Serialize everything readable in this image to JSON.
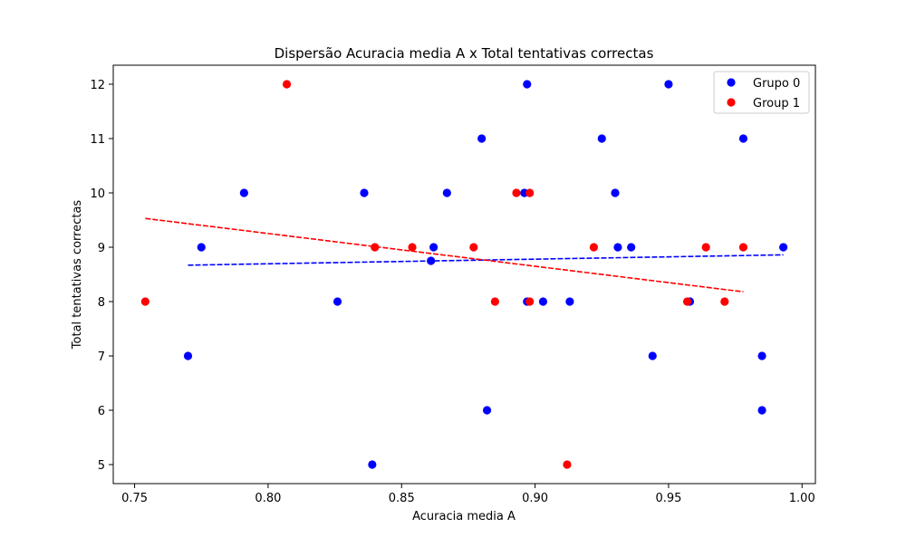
{
  "chart_data": {
    "type": "scatter",
    "title": "Dispersão Acuracia media A x Total tentativas correctas",
    "xlabel": "Acuracia media A",
    "ylabel": "Total tentativas correctas",
    "xlim": [
      0.742,
      1.005
    ],
    "ylim": [
      4.65,
      12.35
    ],
    "xticks": [
      0.75,
      0.8,
      0.85,
      0.9,
      0.95,
      1.0
    ],
    "xtick_labels": [
      "0.75",
      "0.80",
      "0.85",
      "0.90",
      "0.95",
      "1.00"
    ],
    "yticks": [
      5,
      6,
      7,
      8,
      9,
      10,
      11,
      12
    ],
    "ytick_labels": [
      "5",
      "6",
      "7",
      "8",
      "9",
      "10",
      "11",
      "12"
    ],
    "grid": false,
    "legend_position": "top-right",
    "series": [
      {
        "name": "Grupo 0",
        "color": "#0000ff",
        "points": [
          {
            "x": 0.77,
            "y": 7
          },
          {
            "x": 0.775,
            "y": 9
          },
          {
            "x": 0.791,
            "y": 10
          },
          {
            "x": 0.826,
            "y": 8
          },
          {
            "x": 0.836,
            "y": 10
          },
          {
            "x": 0.839,
            "y": 5
          },
          {
            "x": 0.861,
            "y": 8.75
          },
          {
            "x": 0.862,
            "y": 9
          },
          {
            "x": 0.867,
            "y": 10
          },
          {
            "x": 0.88,
            "y": 11
          },
          {
            "x": 0.882,
            "y": 6
          },
          {
            "x": 0.896,
            "y": 10
          },
          {
            "x": 0.897,
            "y": 8
          },
          {
            "x": 0.897,
            "y": 12
          },
          {
            "x": 0.903,
            "y": 8
          },
          {
            "x": 0.913,
            "y": 8
          },
          {
            "x": 0.925,
            "y": 11
          },
          {
            "x": 0.93,
            "y": 10
          },
          {
            "x": 0.931,
            "y": 9
          },
          {
            "x": 0.936,
            "y": 9
          },
          {
            "x": 0.944,
            "y": 7
          },
          {
            "x": 0.95,
            "y": 12
          },
          {
            "x": 0.958,
            "y": 8
          },
          {
            "x": 0.978,
            "y": 11
          },
          {
            "x": 0.985,
            "y": 7
          },
          {
            "x": 0.985,
            "y": 6
          },
          {
            "x": 0.993,
            "y": 9
          }
        ],
        "trendline": {
          "x1": 0.77,
          "y1": 8.67,
          "x2": 0.993,
          "y2": 8.86
        }
      },
      {
        "name": "Group 1",
        "color": "#ff0000",
        "points": [
          {
            "x": 0.754,
            "y": 8
          },
          {
            "x": 0.807,
            "y": 12
          },
          {
            "x": 0.84,
            "y": 9
          },
          {
            "x": 0.854,
            "y": 9
          },
          {
            "x": 0.877,
            "y": 9
          },
          {
            "x": 0.885,
            "y": 8
          },
          {
            "x": 0.893,
            "y": 10
          },
          {
            "x": 0.898,
            "y": 10
          },
          {
            "x": 0.898,
            "y": 8
          },
          {
            "x": 0.912,
            "y": 5
          },
          {
            "x": 0.922,
            "y": 9
          },
          {
            "x": 0.957,
            "y": 8
          },
          {
            "x": 0.964,
            "y": 9
          },
          {
            "x": 0.971,
            "y": 8
          },
          {
            "x": 0.978,
            "y": 9
          }
        ],
        "trendline": {
          "x1": 0.754,
          "y1": 9.53,
          "x2": 0.978,
          "y2": 8.18
        }
      }
    ]
  }
}
